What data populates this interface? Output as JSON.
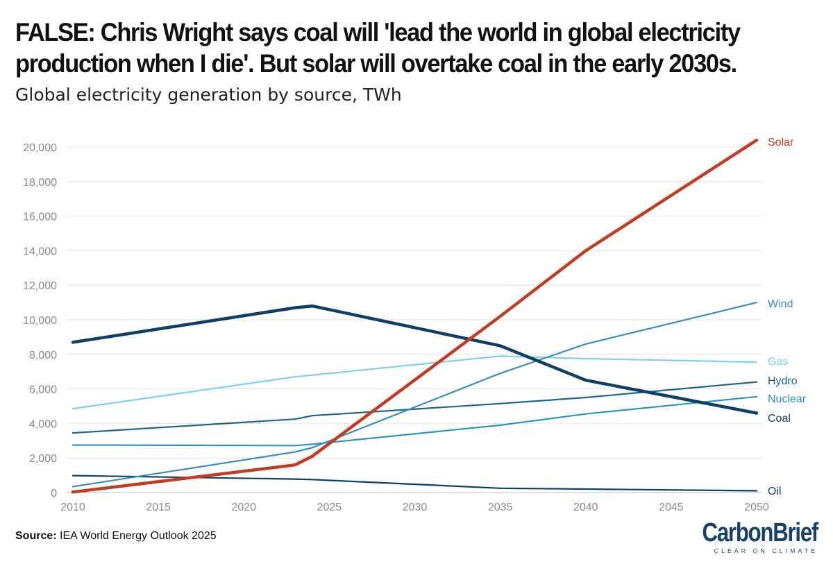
{
  "headline": "FALSE: Chris Wright says coal will 'lead the world in global electricity production when I die'. But solar will overtake coal in the early 2030s.",
  "headline_line1": "FALSE: Chris Wright says coal will 'lead the world in global electricity",
  "headline_line2": "production when I die'. But solar will overtake coal in the early 2030s.",
  "subtitle": "Global electricity generation by source, TWh",
  "source_label": "Source:",
  "source_text": " IEA World Energy Outlook 2025",
  "logo": {
    "word": "CarbonBrief",
    "tagline": "CLEAR ON CLIMATE"
  },
  "chart_data": {
    "type": "line",
    "title": "Global electricity generation by source, TWh",
    "xlabel": "",
    "ylabel": "",
    "xlim": [
      2010,
      2050
    ],
    "ylim": [
      0,
      21000
    ],
    "x_ticks": [
      2010,
      2015,
      2020,
      2025,
      2030,
      2035,
      2040,
      2045,
      2050
    ],
    "y_ticks": [
      0,
      2000,
      4000,
      6000,
      8000,
      10000,
      12000,
      14000,
      16000,
      18000,
      20000
    ],
    "grid": true,
    "legend": "direct labels at line ends",
    "series": [
      {
        "name": "Solar",
        "color": "#c23b22",
        "x": [
          2010,
          2023,
          2024,
          2035,
          2040,
          2050
        ],
        "y": [
          30,
          1600,
          2100,
          10200,
          14000,
          20400
        ]
      },
      {
        "name": "Wind",
        "color": "#3a8dbf",
        "x": [
          2010,
          2023,
          2024,
          2035,
          2040,
          2050
        ],
        "y": [
          340,
          2350,
          2600,
          6900,
          8600,
          11000
        ]
      },
      {
        "name": "Gas",
        "color": "#7fd0ee",
        "x": [
          2010,
          2023,
          2024,
          2035,
          2040,
          2050
        ],
        "y": [
          4850,
          6700,
          6800,
          7900,
          7750,
          7550
        ]
      },
      {
        "name": "Hydro",
        "color": "#1d6690",
        "x": [
          2010,
          2023,
          2024,
          2035,
          2040,
          2050
        ],
        "y": [
          3450,
          4250,
          4450,
          5150,
          5500,
          6400
        ]
      },
      {
        "name": "Nuclear",
        "color": "#2b94c6",
        "x": [
          2010,
          2023,
          2024,
          2035,
          2040,
          2050
        ],
        "y": [
          2750,
          2720,
          2800,
          3900,
          4550,
          5550
        ]
      },
      {
        "name": "Coal",
        "color": "#0f3f66",
        "x": [
          2010,
          2023,
          2024,
          2035,
          2040,
          2050
        ],
        "y": [
          8700,
          10700,
          10800,
          8500,
          6500,
          4600
        ]
      },
      {
        "name": "Oil",
        "color": "#0f3f66",
        "x": [
          2010,
          2023,
          2024,
          2035,
          2040,
          2050
        ],
        "y": [
          980,
          780,
          750,
          250,
          200,
          100
        ]
      }
    ]
  }
}
